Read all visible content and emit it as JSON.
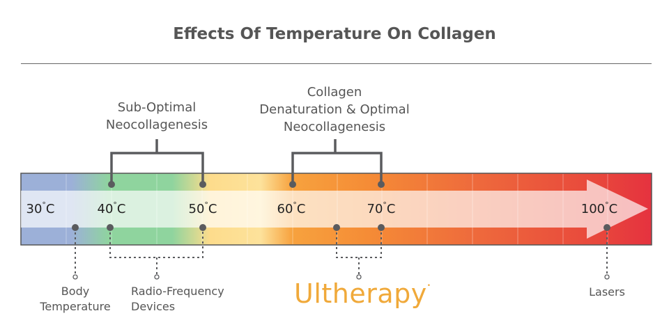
{
  "title": "Effects Of Temperature On Collagen",
  "brackets": {
    "sub_optimal": [
      "Sub-Optimal",
      "Neocollagenesis"
    ],
    "optimal": [
      "Collagen",
      "Denaturation & Optimal",
      "Neocollagenesis"
    ]
  },
  "temperatures": [
    {
      "value": "30",
      "unit": "C"
    },
    {
      "value": "40",
      "unit": "C"
    },
    {
      "value": "50",
      "unit": "C"
    },
    {
      "value": "60",
      "unit": "C"
    },
    {
      "value": "70",
      "unit": "C"
    },
    {
      "value": "100",
      "unit": "C"
    }
  ],
  "degree_symbol": "°",
  "methods": {
    "body": [
      "Body",
      "Temperature"
    ],
    "rf": [
      "Radio-Frequency",
      "Devices"
    ],
    "ultherapy": {
      "text": "Ultherapy",
      "mark": "•"
    },
    "lasers": "Lasers"
  },
  "colors": {
    "blue": "#9cb0d8",
    "green": "#8fd49e",
    "yellow": "#fddc8c",
    "orange": "#f7a23e",
    "red": "#e5323f",
    "marker": "#5a5b5e",
    "ultherapy": "#f0a93a"
  }
}
